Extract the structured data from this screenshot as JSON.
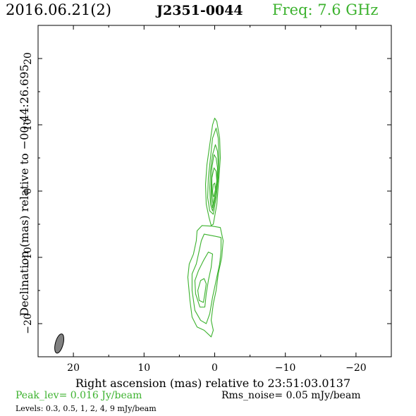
{
  "header": {
    "date": "2016.06.21(2)",
    "source": "J2351-0044",
    "freq": "Freq: 7.6 GHz"
  },
  "footer": {
    "peak": "Peak_lev=  0.016 Jy/beam",
    "rms": "Rms_noise= 0.05 mJy/beam",
    "levels": "Levels: 0.3, 0.5,   1,   2,   4,   9 mJy/beam"
  },
  "colors": {
    "contour": "#3cb22e",
    "beam": "#808080",
    "accent": "#3cb22e"
  },
  "chart_data": {
    "type": "contour",
    "xlabel": "Right ascension (mas) relative to 23:51:03.0137",
    "ylabel": "Declination (mas) relative to −00:44:26.695",
    "xlim": [
      25,
      -25
    ],
    "ylim": [
      -25,
      25
    ],
    "x_ticks": [
      20,
      10,
      0,
      -10,
      -20
    ],
    "x_tick_labels": [
      "20",
      "10",
      "0",
      "−10",
      "−20"
    ],
    "y_ticks": [
      20,
      10,
      0,
      -10,
      -20
    ],
    "y_tick_labels": [
      "20",
      "10",
      "0",
      "−10",
      "−20"
    ],
    "levels_mJy": [
      0.3,
      0.5,
      1,
      2,
      4,
      9
    ],
    "beam": {
      "x": 22.0,
      "y": -23.0,
      "major": 2.8,
      "minor": 1.1,
      "pa_deg": 15
    },
    "contours": [
      {
        "level": 0.3,
        "pts": [
          [
            0.2,
            -5
          ],
          [
            -0.3,
            -2
          ],
          [
            -0.6,
            2
          ],
          [
            -0.8,
            5
          ],
          [
            -0.7,
            8
          ],
          [
            -0.3,
            10.5
          ],
          [
            0,
            11
          ],
          [
            0.3,
            10
          ],
          [
            0.7,
            7
          ],
          [
            1.1,
            4
          ],
          [
            1.3,
            1
          ],
          [
            1.2,
            -2
          ],
          [
            0.8,
            -4
          ],
          [
            0.5,
            -5.2
          ]
        ]
      },
      {
        "level": 0.5,
        "pts": [
          [
            0.2,
            -3.5
          ],
          [
            -0.2,
            -1
          ],
          [
            -0.5,
            2
          ],
          [
            -0.6,
            5
          ],
          [
            -0.5,
            8
          ],
          [
            -0.2,
            9.5
          ],
          [
            0.3,
            8
          ],
          [
            0.6,
            5
          ],
          [
            0.9,
            2
          ],
          [
            1,
            -1
          ],
          [
            0.7,
            -3
          ]
        ]
      },
      {
        "level": 1,
        "pts": [
          [
            0.3,
            -3
          ],
          [
            -0.1,
            -1
          ],
          [
            -0.4,
            1.5
          ],
          [
            -0.5,
            4
          ],
          [
            -0.4,
            6
          ],
          [
            -0.1,
            7
          ],
          [
            0.3,
            5.5
          ],
          [
            0.6,
            3
          ],
          [
            0.7,
            0.5
          ],
          [
            0.6,
            -2
          ]
        ]
      },
      {
        "level": 2,
        "pts": [
          [
            0.3,
            -2.5
          ],
          [
            0,
            -0.5
          ],
          [
            -0.3,
            1.5
          ],
          [
            -0.4,
            3.5
          ],
          [
            -0.2,
            5
          ],
          [
            0.1,
            5.5
          ],
          [
            0.4,
            3.5
          ],
          [
            0.5,
            1
          ],
          [
            0.5,
            -1.5
          ]
        ]
      },
      {
        "level": 4,
        "pts": [
          [
            0.2,
            -2
          ],
          [
            -0.1,
            0
          ],
          [
            -0.3,
            1.5
          ],
          [
            -0.2,
            3
          ],
          [
            0.1,
            3.5
          ],
          [
            0.4,
            2
          ],
          [
            0.4,
            0
          ],
          [
            0.3,
            -1.5
          ]
        ]
      },
      {
        "level": 9,
        "pts": [
          [
            0.1,
            -0.8
          ],
          [
            -0.1,
            0.2
          ],
          [
            0,
            1.2
          ],
          [
            0.2,
            1
          ],
          [
            0.3,
            0
          ],
          [
            0.2,
            -0.8
          ]
        ]
      },
      {
        "level": 0.3,
        "pts": [
          [
            -0.8,
            -5.5
          ],
          [
            -1.2,
            -7.5
          ],
          [
            -1,
            -10
          ],
          [
            -0.5,
            -12.5
          ],
          [
            -0.2,
            -15
          ],
          [
            0.2,
            -17
          ],
          [
            0.5,
            -19.5
          ],
          [
            0.2,
            -21
          ],
          [
            0.5,
            -22
          ],
          [
            1.5,
            -21
          ],
          [
            2.5,
            -20.5
          ],
          [
            3.2,
            -19
          ],
          [
            3.5,
            -16.5
          ],
          [
            3.8,
            -13
          ],
          [
            3.6,
            -11
          ],
          [
            3,
            -9.5
          ],
          [
            2.6,
            -7.5
          ],
          [
            2.5,
            -6
          ],
          [
            1.8,
            -5.2
          ],
          [
            0.3,
            -5.3
          ]
        ]
      },
      {
        "level": 0.5,
        "pts": [
          [
            -0.9,
            -7
          ],
          [
            -0.9,
            -9
          ],
          [
            -0.7,
            -11
          ],
          [
            -0.2,
            -13.5
          ],
          [
            0.3,
            -16
          ],
          [
            0.7,
            -18.5
          ],
          [
            1.2,
            -20
          ],
          [
            2,
            -19.5
          ],
          [
            2.8,
            -18
          ],
          [
            3.2,
            -15
          ],
          [
            3.2,
            -12.5
          ],
          [
            2.6,
            -11
          ],
          [
            2.2,
            -9
          ],
          [
            1.9,
            -7.5
          ],
          [
            1.5,
            -6.5
          ],
          [
            0,
            -6.8
          ]
        ]
      },
      {
        "level": 1,
        "pts": [
          [
            0.3,
            -9.5
          ],
          [
            0.5,
            -11.5
          ],
          [
            0.9,
            -13.5
          ],
          [
            1.2,
            -15.5
          ],
          [
            1.4,
            -17.5
          ],
          [
            2.1,
            -17.5
          ],
          [
            2.7,
            -15.5
          ],
          [
            2.8,
            -13.5
          ],
          [
            2.3,
            -12
          ],
          [
            1.6,
            -10.5
          ],
          [
            0.9,
            -9.2
          ]
        ]
      },
      {
        "level": 2,
        "pts": [
          [
            1.2,
            -14
          ],
          [
            1.4,
            -15.5
          ],
          [
            1.6,
            -16.8
          ],
          [
            2.2,
            -16.5
          ],
          [
            2.4,
            -15
          ],
          [
            2,
            -13.5
          ],
          [
            1.5,
            -13.2
          ]
        ]
      }
    ]
  }
}
